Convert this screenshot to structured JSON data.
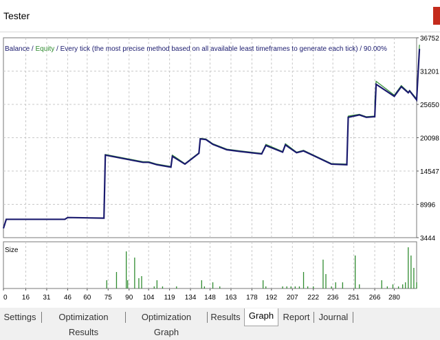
{
  "window": {
    "title": "Tester"
  },
  "chart_data": [
    {
      "type": "line",
      "legend": {
        "balance": "Balance",
        "sep1": " / ",
        "equity": "Equity",
        "text": " / Every tick (the most precise method based on all available least timeframes to generate each tick) / 90.00%"
      },
      "y_ticks": [
        "36752",
        "31201",
        "25650",
        "20098",
        "14547",
        "8996",
        "3444"
      ],
      "y_tick_values": [
        36752,
        31201,
        25650,
        20098,
        14547,
        8996,
        3444
      ],
      "ylim": [
        3444,
        36752
      ],
      "xlim": [
        0,
        296
      ],
      "x_ticks": [
        "0",
        "16",
        "31",
        "46",
        "60",
        "75",
        "90",
        "104",
        "119",
        "134",
        "148",
        "163",
        "178",
        "192",
        "207",
        "222",
        "236",
        "251",
        "266",
        "280"
      ],
      "x_tick_values": [
        0,
        16,
        31,
        46,
        60,
        75,
        90,
        104,
        119,
        134,
        148,
        163,
        178,
        192,
        207,
        222,
        236,
        251,
        266,
        280
      ],
      "colors": {
        "balance": "#1a1a6e",
        "equity": "#2e8b2e",
        "grid": "#c8c8c8"
      },
      "series": [
        {
          "name": "Balance",
          "points": [
            [
              0,
              5000
            ],
            [
              2,
              6500
            ],
            [
              44,
              6500
            ],
            [
              46,
              6800
            ],
            [
              72,
              6700
            ],
            [
              73,
              17200
            ],
            [
              100,
              16000
            ],
            [
              104,
              16000
            ],
            [
              110,
              15600
            ],
            [
              120,
              15200
            ],
            [
              121,
              17000
            ],
            [
              130,
              15700
            ],
            [
              140,
              17500
            ],
            [
              141,
              19900
            ],
            [
              145,
              19800
            ],
            [
              150,
              19000
            ],
            [
              160,
              18100
            ],
            [
              170,
              17800
            ],
            [
              185,
              17400
            ],
            [
              188,
              18800
            ],
            [
              200,
              17700
            ],
            [
              202,
              18900
            ],
            [
              210,
              17600
            ],
            [
              215,
              17900
            ],
            [
              225,
              16800
            ],
            [
              235,
              15700
            ],
            [
              246,
              15600
            ],
            [
              247,
              23500
            ],
            [
              255,
              23900
            ],
            [
              260,
              23500
            ],
            [
              266,
              23600
            ],
            [
              267,
              29000
            ],
            [
              280,
              27000
            ],
            [
              285,
              28600
            ],
            [
              290,
              27600
            ],
            [
              291,
              27900
            ],
            [
              296,
              26400
            ],
            [
              298,
              34900
            ]
          ]
        },
        {
          "name": "Equity",
          "points": [
            [
              0,
              5000
            ],
            [
              2,
              6500
            ],
            [
              44,
              6500
            ],
            [
              46,
              6800
            ],
            [
              72,
              6700
            ],
            [
              73,
              17300
            ],
            [
              100,
              16100
            ],
            [
              104,
              16100
            ],
            [
              110,
              15700
            ],
            [
              120,
              15300
            ],
            [
              121,
              17200
            ],
            [
              130,
              15800
            ],
            [
              140,
              17600
            ],
            [
              141,
              20000
            ],
            [
              145,
              19900
            ],
            [
              150,
              19100
            ],
            [
              160,
              18200
            ],
            [
              170,
              17900
            ],
            [
              185,
              17500
            ],
            [
              188,
              19000
            ],
            [
              200,
              17800
            ],
            [
              202,
              19100
            ],
            [
              210,
              17700
            ],
            [
              215,
              18000
            ],
            [
              225,
              16900
            ],
            [
              235,
              15800
            ],
            [
              246,
              15700
            ],
            [
              247,
              23700
            ],
            [
              255,
              24000
            ],
            [
              260,
              23600
            ],
            [
              266,
              23700
            ],
            [
              266,
              26000
            ],
            [
              267,
              29500
            ],
            [
              280,
              27200
            ],
            [
              285,
              28800
            ],
            [
              290,
              27700
            ],
            [
              291,
              28000
            ],
            [
              296,
              26600
            ],
            [
              298,
              35600
            ]
          ]
        }
      ],
      "grid": true
    },
    {
      "type": "bar",
      "title": "Size",
      "colors": {
        "bar": "#2e8b2e"
      },
      "xlim": [
        0,
        296
      ],
      "ylim": [
        0,
        1
      ],
      "bars": [
        [
          74,
          0.2
        ],
        [
          81,
          0.4
        ],
        [
          88,
          0.9
        ],
        [
          89,
          0.2
        ],
        [
          94,
          0.75
        ],
        [
          97,
          0.25
        ],
        [
          99,
          0.3
        ],
        [
          108,
          0.05
        ],
        [
          110,
          0.2
        ],
        [
          114,
          0.05
        ],
        [
          124,
          0.05
        ],
        [
          142,
          0.2
        ],
        [
          144,
          0.05
        ],
        [
          150,
          0.15
        ],
        [
          155,
          0.05
        ],
        [
          186,
          0.2
        ],
        [
          188,
          0.05
        ],
        [
          200,
          0.05
        ],
        [
          203,
          0.05
        ],
        [
          206,
          0.05
        ],
        [
          209,
          0.05
        ],
        [
          212,
          0.05
        ],
        [
          215,
          0.4
        ],
        [
          218,
          0.05
        ],
        [
          222,
          0.05
        ],
        [
          229,
          0.7
        ],
        [
          231,
          0.35
        ],
        [
          235,
          0.05
        ],
        [
          238,
          0.15
        ],
        [
          243,
          0.15
        ],
        [
          252,
          0.8
        ],
        [
          255,
          0.1
        ],
        [
          271,
          0.2
        ],
        [
          275,
          0.05
        ],
        [
          279,
          0.1
        ],
        [
          283,
          0.05
        ],
        [
          286,
          0.1
        ],
        [
          288,
          0.15
        ],
        [
          290,
          1.0
        ],
        [
          292,
          0.8
        ],
        [
          294,
          0.5
        ],
        [
          296,
          0.15
        ]
      ]
    }
  ],
  "tabs": [
    {
      "label": "Settings",
      "active": false
    },
    {
      "label": "Optimization Results",
      "active": false
    },
    {
      "label": "Optimization Graph",
      "active": false
    },
    {
      "label": "Results",
      "active": false
    },
    {
      "label": "Graph",
      "active": true
    },
    {
      "label": "Report",
      "active": false
    },
    {
      "label": "Journal",
      "active": false
    }
  ]
}
